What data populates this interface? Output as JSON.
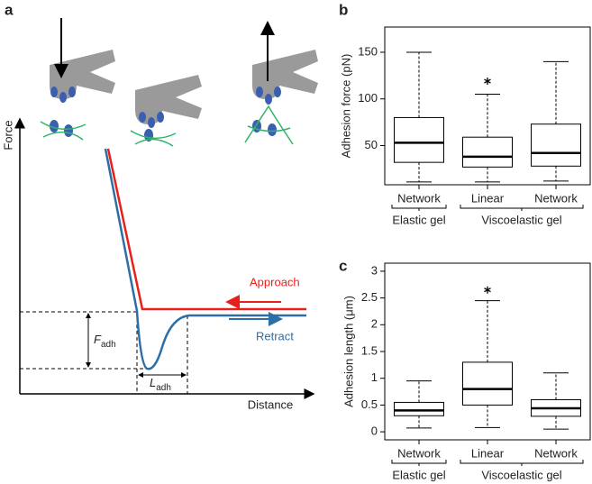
{
  "panel_labels": [
    "a",
    "b",
    "c"
  ],
  "schematic": {
    "y_axis_label": "Force",
    "x_axis_label": "Distance",
    "approach": "Approach",
    "retract": "Retract",
    "force_symbol": "F",
    "length_symbol": "L",
    "subscript": "adh"
  },
  "chart_data": [
    {
      "type": "box",
      "ylabel": "Adhesion force (pN)",
      "categories": [
        "Network",
        "Linear",
        "Network"
      ],
      "groups": [
        {
          "name": "Elastic gel",
          "span": 1
        },
        {
          "name": "Viscoelastic gel",
          "span": 2
        }
      ],
      "boxes": [
        {
          "whislo": 11,
          "q1": 32,
          "med": 53,
          "q3": 80,
          "whishi": 150,
          "fliers": []
        },
        {
          "whislo": 11,
          "q1": 27,
          "med": 38,
          "q3": 59,
          "whishi": 105,
          "fliers": [
            119
          ]
        },
        {
          "whislo": 12,
          "q1": 28,
          "med": 42,
          "q3": 73,
          "whishi": 140,
          "fliers": []
        }
      ],
      "ylim": [
        8,
        177
      ],
      "yticks": [
        50,
        100,
        150
      ]
    },
    {
      "type": "box",
      "ylabel": "Adhesion length (μm)",
      "categories": [
        "Network",
        "Linear",
        "Network"
      ],
      "groups": [
        {
          "name": "Elastic gel",
          "span": 1
        },
        {
          "name": "Viscoelastic gel",
          "span": 2
        }
      ],
      "boxes": [
        {
          "whislo": 0.07,
          "q1": 0.3,
          "med": 0.4,
          "q3": 0.55,
          "whishi": 0.95,
          "fliers": []
        },
        {
          "whislo": 0.08,
          "q1": 0.5,
          "med": 0.8,
          "q3": 1.3,
          "whishi": 2.45,
          "fliers": [
            2.65
          ]
        },
        {
          "whislo": 0.05,
          "q1": 0.29,
          "med": 0.44,
          "q3": 0.6,
          "whishi": 1.1,
          "fliers": []
        }
      ],
      "ylim": [
        -0.15,
        3.15
      ],
      "yticks": [
        0,
        0.5,
        1,
        1.5,
        2,
        2.5,
        3
      ]
    }
  ]
}
